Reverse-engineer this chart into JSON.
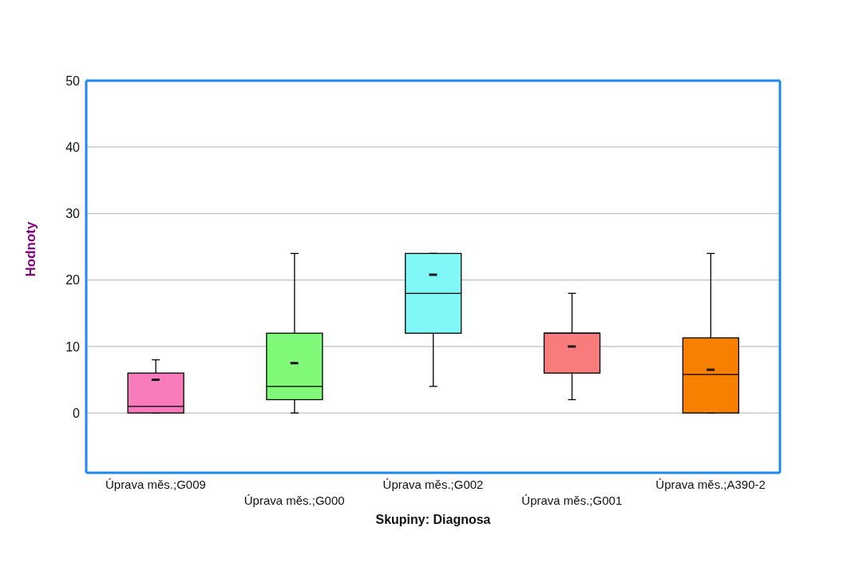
{
  "chart_data": {
    "type": "box",
    "xlabel": "Skupiny: Diagnosa",
    "ylabel": "Hodnoty",
    "categories": [
      "Úprava měs.;G009",
      "Úprava měs.;G000",
      "Úprava měs.;G002",
      "Úprava měs.;G001",
      "Úprava měs.;A390-2"
    ],
    "colors": [
      "#f87cbc",
      "#80f878",
      "#80f8f8",
      "#f87c7c",
      "#f88000"
    ],
    "boxes": [
      {
        "low": 0,
        "q1": 0,
        "median": 1,
        "q3": 6,
        "high": 8,
        "mean": 5
      },
      {
        "low": 0,
        "q1": 2,
        "median": 4,
        "q3": 12,
        "high": 24,
        "mean": 7.5
      },
      {
        "low": 4,
        "q1": 12,
        "median": 18,
        "q3": 24,
        "high": 24,
        "mean": 20.8
      },
      {
        "low": 2,
        "q1": 6,
        "median": 12,
        "q3": 12,
        "high": 18,
        "mean": 10
      },
      {
        "low": 0,
        "q1": 0,
        "median": 5.8,
        "q3": 11.3,
        "high": 24,
        "mean": 6.5
      }
    ],
    "ylim": [
      -9,
      50
    ],
    "yticks": [
      0,
      10,
      20,
      30,
      40,
      50
    ],
    "grid": "y"
  }
}
